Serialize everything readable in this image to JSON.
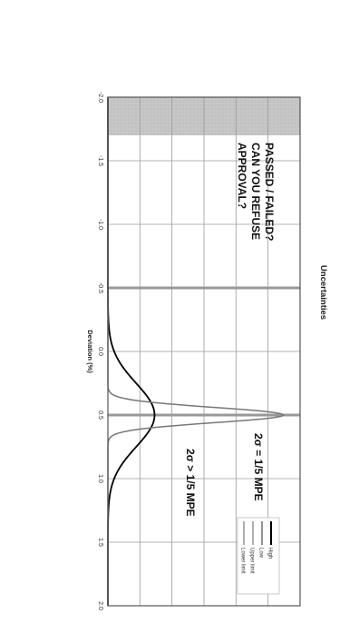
{
  "chart_data": {
    "type": "line",
    "title": "Uncertainties",
    "xlabel": "Deviation (%)",
    "ylabel": "",
    "xlim": [
      -2.0,
      2.0
    ],
    "ylim": [
      0,
      7
    ],
    "x_ticks": [
      "-2.0",
      "-1.5",
      "-1.0",
      "-0.5",
      "0.0",
      "0.5",
      "1.0",
      "1.5",
      "2.0"
    ],
    "x_tick_values": [
      -2.0,
      -1.5,
      -1.0,
      -0.5,
      0.0,
      0.5,
      1.0,
      1.5,
      2.0
    ],
    "orientation": "rotated-90-clockwise",
    "grid": true,
    "legend_position": "top-right",
    "series": [
      {
        "name": "High",
        "kind": "gaussian",
        "mean": 0.5,
        "sigma": 0.25,
        "peak": 1.7,
        "color": "#000000"
      },
      {
        "name": "Low",
        "kind": "gaussian",
        "mean": 0.5,
        "sigma": 0.06,
        "peak": 6.4,
        "color": "#777777"
      },
      {
        "name": "Upper limit",
        "kind": "vline",
        "x": 0.5,
        "color": "#999999"
      },
      {
        "name": "Lower limit",
        "kind": "vline",
        "x": -0.5,
        "color": "#999999"
      }
    ],
    "shaded_region": {
      "from": -2.0,
      "to": -1.7,
      "color": "#c8c8c8"
    },
    "annotations": {
      "question": [
        "PASSED / FAILED?",
        "CAN YOU REFUSE",
        "APPROVAL?"
      ],
      "narrow_label": "2σ = 1/5 MPE",
      "wide_label": "2σ > 1/5 MPE"
    }
  }
}
